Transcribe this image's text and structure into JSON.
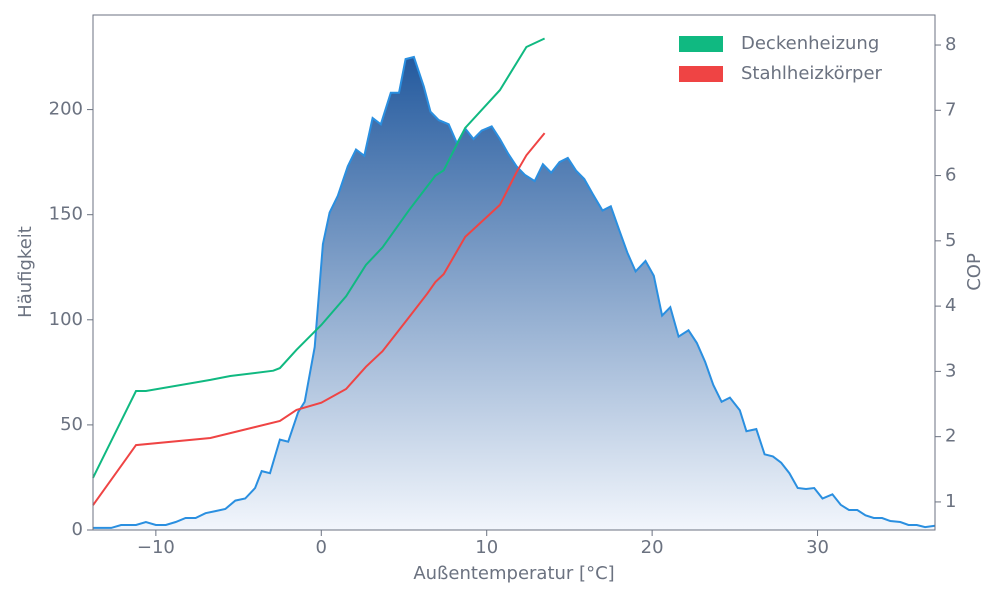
{
  "chart_data": {
    "type": "line",
    "xlabel": "Außentemperatur [°C]",
    "ylabel": "Häufigkeit",
    "y2label": "COP",
    "xlim": [
      -13.8,
      37.1
    ],
    "ylim": [
      0,
      245
    ],
    "y2lim": [
      0.57,
      8.46
    ],
    "xticks": [
      {
        "value": -10,
        "label": "−10"
      },
      0,
      10,
      20,
      30
    ],
    "yticks": [
      0,
      50,
      100,
      150,
      200
    ],
    "y2ticks": [
      1,
      2,
      3,
      4,
      5,
      6,
      7,
      8
    ],
    "legend": "upper right",
    "series": [
      {
        "type": "area",
        "color": "#2a8fe0",
        "fill_top": "#245a9e",
        "fill_bottom": "#f2f6fc",
        "x": [
          -13.8,
          -12.7,
          -12.1,
          -11.2,
          -10.6,
          -10,
          -9.4,
          -8.8,
          -8.2,
          -7.6,
          -7,
          -6.4,
          -5.8,
          -5.2,
          -4.6,
          -4,
          -3.6,
          -3.1,
          -2.5,
          -2,
          -1.4,
          -1,
          -0.4,
          0.1,
          0.5,
          1,
          1.6,
          2.1,
          2.6,
          3.1,
          3.6,
          4.2,
          4.7,
          5.1,
          5.6,
          6.2,
          6.6,
          7.1,
          7.7,
          8.2,
          8.7,
          9.2,
          9.7,
          10.3,
          10.8,
          11.3,
          11.8,
          12.3,
          12.9,
          13.4,
          13.9,
          14.4,
          14.9,
          15.4,
          15.9,
          16.4,
          17,
          17.5,
          18,
          18.5,
          19,
          19.6,
          20.1,
          20.6,
          21.1,
          21.6,
          22.2,
          22.7,
          23.2,
          23.7,
          24.2,
          24.7,
          25.3,
          25.7,
          26.3,
          26.8,
          27.3,
          27.8,
          28.3,
          28.8,
          29.3,
          29.8,
          30.3,
          30.9,
          31.4,
          31.9,
          32.4,
          32.9,
          33.4,
          33.9,
          34.4,
          35,
          35.5,
          36,
          36.5,
          37.1
        ],
        "values": [
          1,
          1,
          2.4,
          2.4,
          3.8,
          2.4,
          2.4,
          3.8,
          5.7,
          5.7,
          8,
          9,
          10,
          14,
          15,
          20,
          28,
          27,
          43,
          42,
          56,
          61,
          87,
          136,
          151,
          159,
          173,
          181,
          178,
          196,
          193,
          208,
          208,
          224,
          225,
          211,
          199,
          195,
          193,
          184,
          191,
          186,
          190,
          192,
          186,
          179,
          173,
          169,
          166,
          174,
          170,
          175,
          177,
          171,
          167,
          160,
          152,
          154,
          143,
          132,
          123,
          128,
          121,
          102,
          106,
          92,
          95,
          89,
          80,
          69,
          61,
          63,
          57,
          47,
          48,
          36,
          35,
          32,
          27,
          20,
          19.5,
          20,
          15,
          17,
          12,
          9.5,
          9.5,
          7,
          5.7,
          5.7,
          4.3,
          3.8,
          2.4,
          2.4,
          1.4,
          2
        ]
      },
      {
        "type": "line",
        "axis": "y2",
        "name": "Deckenheizung",
        "color": "#10b981",
        "x": [
          -13.8,
          -11.2,
          -10.6,
          -6.7,
          -5.5,
          -2.9,
          -2.5,
          -1.5,
          0,
          1.5,
          2.7,
          3.7,
          5.3,
          6.9,
          7.4,
          8.7,
          10.8,
          12.4,
          13.5
        ],
        "values": [
          1.37,
          2.7,
          2.7,
          2.87,
          2.93,
          3.01,
          3.05,
          3.33,
          3.71,
          4.15,
          4.63,
          4.9,
          5.47,
          6.0,
          6.08,
          6.73,
          7.31,
          7.97,
          8.1
        ]
      },
      {
        "type": "line",
        "axis": "y2",
        "name": "Stahlheizkörper",
        "color": "#ef4444",
        "x": [
          -13.8,
          -11.2,
          -6.7,
          -2.5,
          -1.5,
          0,
          1.5,
          2.7,
          3.7,
          5.3,
          6.4,
          6.9,
          7.4,
          8.7,
          10.8,
          11.8,
          12.4,
          13.5
        ],
        "values": [
          0.95,
          1.87,
          1.98,
          2.24,
          2.41,
          2.52,
          2.73,
          3.07,
          3.31,
          3.83,
          4.19,
          4.37,
          4.49,
          5.06,
          5.55,
          6.05,
          6.31,
          6.65
        ]
      }
    ]
  }
}
